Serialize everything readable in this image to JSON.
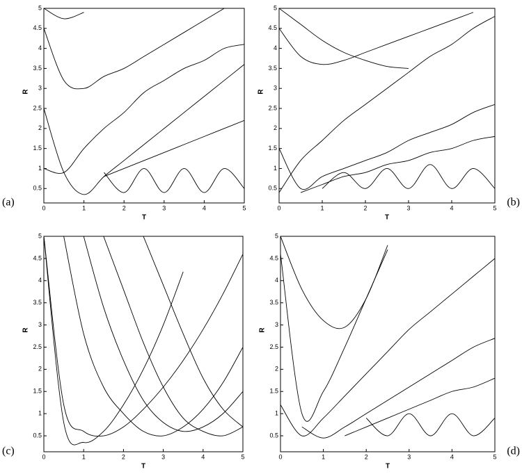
{
  "chart_data": [
    {
      "type": "line",
      "label": "(a)",
      "x_label": "T",
      "y_label": "R",
      "x": [
        0,
        0.5,
        1,
        1.5,
        2,
        2.5,
        3,
        3.5,
        4,
        4.5,
        5
      ],
      "series": [
        {
          "color": "#000000",
          "values": [
            5,
            4.74,
            4.9,
            null,
            null,
            null,
            null,
            null,
            null,
            null,
            null
          ]
        },
        {
          "color": "#000000",
          "values": [
            4.5,
            3.2,
            3.0,
            3.3,
            3.5,
            3.8,
            4.1,
            4.4,
            4.7,
            5,
            null
          ]
        },
        {
          "color": "#000000",
          "values": [
            1.0,
            0.9,
            1.5,
            2.0,
            2.4,
            2.9,
            3.2,
            3.5,
            3.7,
            4.0,
            4.1
          ]
        },
        {
          "color": "#000000",
          "values": [
            2.5,
            0.9,
            0.35,
            0.8,
            1.2,
            1.6,
            2.0,
            2.4,
            2.8,
            3.2,
            3.6
          ]
        },
        {
          "color": "#000000",
          "values": [
            null,
            null,
            null,
            0.8,
            1.0,
            1.2,
            1.4,
            1.6,
            1.8,
            2.0,
            2.2
          ]
        },
        {
          "color": "#000000",
          "values": [
            null,
            null,
            null,
            0.9,
            0.4,
            1.0,
            0.4,
            1.0,
            0.4,
            1.0,
            0.5
          ]
        }
      ],
      "xlim": [
        0,
        5
      ],
      "ylim": [
        0.14,
        5
      ],
      "xticks": [
        0,
        1,
        2,
        3,
        4,
        5
      ],
      "yticks": [
        0.5,
        1,
        1.5,
        2,
        2.5,
        3,
        3.5,
        4,
        4.5,
        5
      ]
    },
    {
      "type": "line",
      "label": "(b)",
      "x_label": "T",
      "y_label": "R",
      "x": [
        0,
        0.5,
        1,
        1.5,
        2,
        2.5,
        3,
        3.5,
        4,
        4.5,
        5
      ],
      "series": [
        {
          "color": "#000000",
          "values": [
            5,
            4.6,
            4.2,
            3.9,
            3.7,
            3.55,
            3.5,
            null,
            null,
            null,
            null
          ]
        },
        {
          "color": "#000000",
          "values": [
            4.5,
            3.8,
            3.6,
            3.7,
            3.9,
            4.1,
            4.3,
            4.5,
            4.7,
            4.9,
            null
          ]
        },
        {
          "color": "#000000",
          "values": [
            0.4,
            1.2,
            1.7,
            2.2,
            2.6,
            3.0,
            3.4,
            3.8,
            4.1,
            4.5,
            4.8
          ]
        },
        {
          "color": "#000000",
          "values": [
            1.5,
            0.5,
            0.8,
            1.0,
            1.2,
            1.4,
            1.7,
            1.9,
            2.1,
            2.4,
            2.6
          ]
        },
        {
          "color": "#000000",
          "values": [
            null,
            0.4,
            0.6,
            0.8,
            0.9,
            1.1,
            1.2,
            1.4,
            1.5,
            1.7,
            1.8
          ]
        },
        {
          "color": "#000000",
          "values": [
            null,
            null,
            0.5,
            0.9,
            0.5,
            1.0,
            0.5,
            1.1,
            0.5,
            1.0,
            0.5
          ]
        }
      ],
      "xlim": [
        0,
        5
      ],
      "ylim": [
        0.14,
        5
      ],
      "xticks": [
        0,
        1,
        2,
        3,
        4,
        5
      ],
      "yticks": [
        0.5,
        1,
        1.5,
        2,
        2.5,
        3,
        3.5,
        4,
        4.5,
        5
      ]
    },
    {
      "type": "line",
      "label": "(c)",
      "x_label": "T",
      "y_label": "R",
      "x": [
        0,
        0.5,
        1,
        1.5,
        2,
        2.5,
        3,
        3.5,
        4,
        4.5,
        5
      ],
      "series": [
        {
          "color": "#000000",
          "values": [
            5,
            1.2,
            0.6,
            0.5,
            0.7,
            1.1,
            1.6,
            2.2,
            2.9,
            3.7,
            4.6
          ]
        },
        {
          "color": "#000000",
          "values": [
            5,
            0.8,
            0.35,
            0.6,
            1.2,
            2.0,
            3.0,
            4.2,
            null,
            null,
            null
          ]
        },
        {
          "color": "#000000",
          "values": [
            null,
            5,
            2.8,
            1.6,
            1.0,
            0.6,
            0.5,
            0.7,
            1.1,
            1.7,
            2.5
          ]
        },
        {
          "color": "#000000",
          "values": [
            null,
            null,
            5,
            3.4,
            2.2,
            1.3,
            0.8,
            0.6,
            0.7,
            1.0,
            1.5
          ]
        },
        {
          "color": "#000000",
          "values": [
            null,
            null,
            null,
            5,
            3.8,
            2.6,
            1.6,
            0.9,
            0.6,
            0.5,
            0.7
          ]
        },
        {
          "color": "#000000",
          "values": [
            null,
            null,
            null,
            null,
            null,
            5,
            3.9,
            2.8,
            1.8,
            1.1,
            0.7
          ]
        }
      ],
      "xlim": [
        0,
        5
      ],
      "ylim": [
        0.14,
        5
      ],
      "xticks": [
        0,
        1,
        2,
        3,
        4,
        5
      ],
      "yticks": [
        0.5,
        1,
        1.5,
        2,
        2.5,
        3,
        3.5,
        4,
        4.5,
        5
      ]
    },
    {
      "type": "line",
      "label": "(d)",
      "x_label": "T",
      "y_label": "R",
      "x": [
        0,
        0.5,
        1,
        1.5,
        2,
        2.5,
        3,
        3.5,
        4,
        4.5,
        5
      ],
      "series": [
        {
          "color": "#000000",
          "values": [
            5,
            3.8,
            3.1,
            2.95,
            3.6,
            4.8,
            null,
            null,
            null,
            null,
            null
          ]
        },
        {
          "color": "#000000",
          "values": [
            4.6,
            1.0,
            1.5,
            2.5,
            3.6,
            4.7,
            null,
            null,
            null,
            null,
            null
          ]
        },
        {
          "color": "#000000",
          "values": [
            1.2,
            0.5,
            0.9,
            1.4,
            1.9,
            2.4,
            2.9,
            3.3,
            3.7,
            4.1,
            4.5
          ]
        },
        {
          "color": "#000000",
          "values": [
            null,
            0.7,
            0.45,
            0.7,
            1.0,
            1.3,
            1.6,
            1.9,
            2.2,
            2.5,
            2.7
          ]
        },
        {
          "color": "#000000",
          "values": [
            null,
            null,
            null,
            0.5,
            0.7,
            0.9,
            1.1,
            1.3,
            1.5,
            1.6,
            1.8
          ]
        },
        {
          "color": "#000000",
          "values": [
            null,
            null,
            null,
            null,
            0.9,
            0.5,
            1.0,
            0.5,
            1.0,
            0.5,
            0.9
          ]
        }
      ],
      "xlim": [
        0,
        5
      ],
      "ylim": [
        0.14,
        5
      ],
      "xticks": [
        0,
        1,
        2,
        3,
        4,
        5
      ],
      "yticks": [
        0.5,
        1,
        1.5,
        2,
        2.5,
        3,
        3.5,
        4,
        4.5,
        5
      ]
    }
  ]
}
